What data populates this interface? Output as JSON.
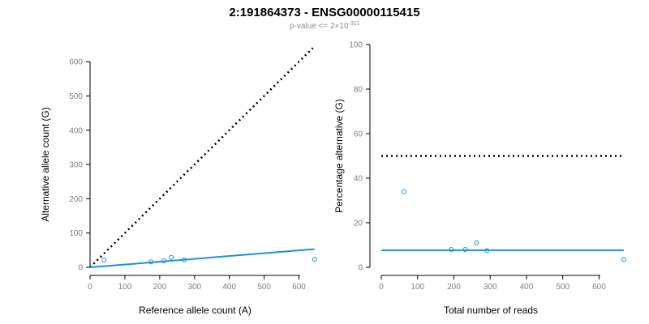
{
  "header": {
    "title": "2:191864373 - ENSG00000115415",
    "subtitle_prefix": "p-value <= 2×10",
    "subtitle_exponent": "-311"
  },
  "colors": {
    "points": "#1f8fe0",
    "fit_line": "#1f8fe0",
    "reference_line": "#000000"
  },
  "chart_data": [
    {
      "type": "scatter",
      "xlabel": "Reference allele count (A)",
      "ylabel": "Alternative allele count (G)",
      "xlim": [
        0,
        650
      ],
      "ylim": [
        0,
        650
      ],
      "xticks": [
        0,
        100,
        200,
        300,
        400,
        500,
        600
      ],
      "yticks": [
        0,
        100,
        200,
        300,
        400,
        500,
        600
      ],
      "points": [
        {
          "x": 40,
          "y": 21
        },
        {
          "x": 175,
          "y": 16
        },
        {
          "x": 212,
          "y": 19
        },
        {
          "x": 233,
          "y": 29
        },
        {
          "x": 270,
          "y": 22
        },
        {
          "x": 645,
          "y": 23
        }
      ],
      "reference_line": {
        "style": "dotted",
        "x": [
          0,
          640
        ],
        "y": [
          0,
          640
        ]
      },
      "fit_line": {
        "style": "solid",
        "x": [
          0,
          645
        ],
        "y": [
          0,
          53
        ]
      }
    },
    {
      "type": "scatter",
      "xlabel": "Total number of reads",
      "ylabel": "Percentage alternative (G)",
      "xlim": [
        0,
        675
      ],
      "ylim": [
        0,
        100
      ],
      "xticks": [
        0,
        100,
        200,
        300,
        400,
        500,
        600
      ],
      "yticks": [
        0,
        20,
        40,
        60,
        80,
        100
      ],
      "points": [
        {
          "x": 62,
          "y": 34
        },
        {
          "x": 193,
          "y": 8
        },
        {
          "x": 231,
          "y": 8
        },
        {
          "x": 262,
          "y": 11
        },
        {
          "x": 291,
          "y": 7.5
        },
        {
          "x": 668,
          "y": 3.5
        }
      ],
      "reference_line": {
        "style": "dotted",
        "x": [
          0,
          668
        ],
        "y": [
          50,
          50
        ]
      },
      "fit_line": {
        "style": "solid",
        "x": [
          0,
          668
        ],
        "y": [
          7.7,
          7.7
        ]
      }
    }
  ]
}
